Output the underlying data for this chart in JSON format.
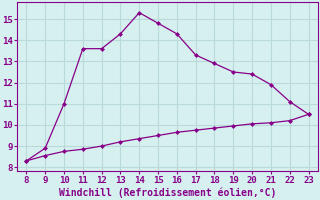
{
  "xlabel": "Windchill (Refroidissement éolien,°C)",
  "x_upper": [
    8,
    9,
    10,
    11,
    12,
    13,
    14,
    15,
    16,
    17,
    18,
    19,
    20,
    21,
    22,
    23
  ],
  "y_upper": [
    8.3,
    8.9,
    11.0,
    13.6,
    13.6,
    14.3,
    15.3,
    14.8,
    14.3,
    13.3,
    12.9,
    12.5,
    12.4,
    11.9,
    11.1,
    10.5
  ],
  "x_lower": [
    8,
    9,
    10,
    11,
    12,
    13,
    14,
    15,
    16,
    17,
    18,
    19,
    20,
    21,
    22,
    23
  ],
  "y_lower": [
    8.3,
    8.55,
    8.75,
    8.85,
    9.0,
    9.2,
    9.35,
    9.5,
    9.65,
    9.75,
    9.85,
    9.95,
    10.05,
    10.1,
    10.2,
    10.5
  ],
  "line_color": "#880088",
  "marker": "D",
  "markersize": 2.5,
  "bg_color": "#d6f0f0",
  "grid_color": "#b8dada",
  "xlim": [
    7.5,
    23.5
  ],
  "ylim": [
    7.8,
    15.8
  ],
  "xticks": [
    8,
    9,
    10,
    11,
    12,
    13,
    14,
    15,
    16,
    17,
    18,
    19,
    20,
    21,
    22,
    23
  ],
  "yticks": [
    8,
    9,
    10,
    11,
    12,
    13,
    14,
    15
  ],
  "tick_fontsize": 6.5,
  "xlabel_fontsize": 7.0
}
